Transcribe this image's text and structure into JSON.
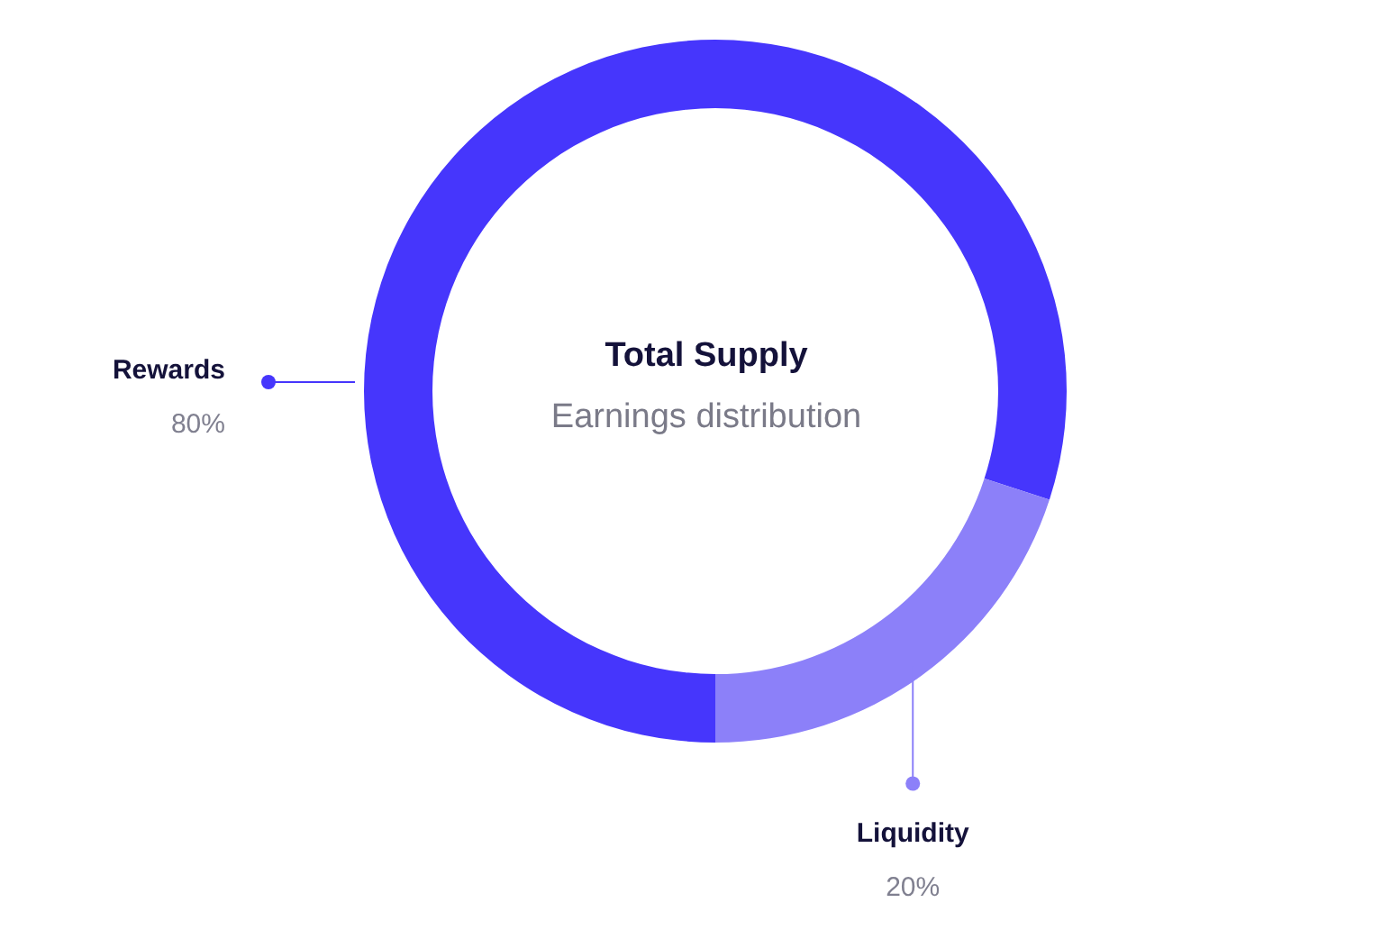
{
  "chart_data": {
    "type": "donut",
    "title": "Total Supply",
    "subtitle": "Earnings distribution",
    "categories": [
      "Rewards",
      "Liquidity"
    ],
    "values": [
      80,
      20
    ],
    "value_labels": [
      "80%",
      "20%"
    ],
    "colors": [
      "#4636fc",
      "#8c80f9"
    ]
  }
}
